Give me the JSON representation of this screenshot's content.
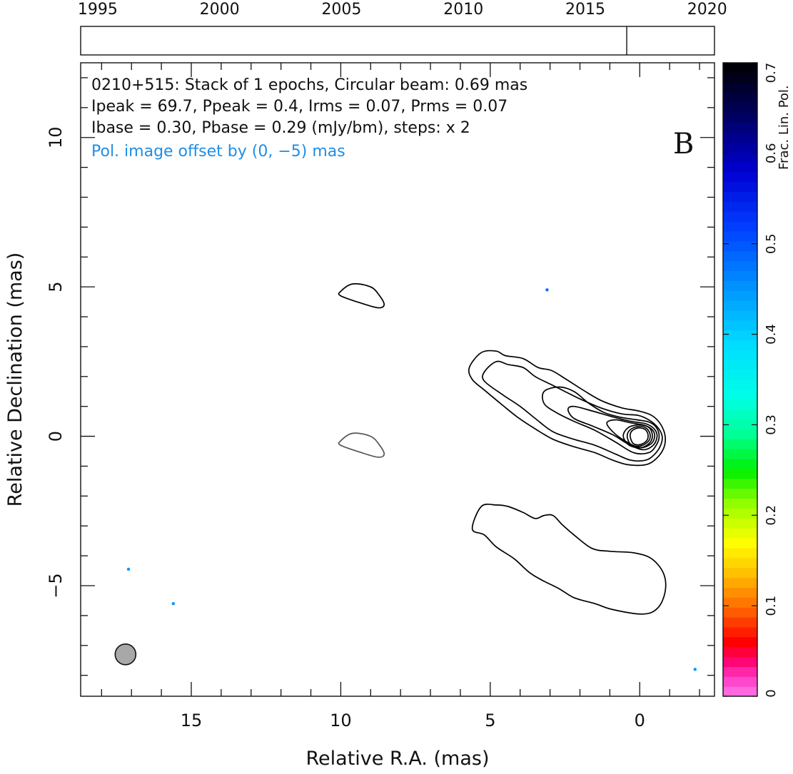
{
  "chart_data": {
    "type": "contour",
    "timeline": {
      "years": [
        "1995",
        "2000",
        "2005",
        "2010",
        "2015",
        "2020"
      ],
      "year_values": [
        1995,
        2000,
        2005,
        2010,
        2015,
        2020
      ],
      "range": [
        1994.3,
        2020.3
      ],
      "epochs": [
        2016.7
      ]
    },
    "header_lines": [
      "0210+515: Stack of 1 epochs, Circular beam: 0.69 mas",
      "Ipeak = 69.7, Ppeak = 0.4, Irms = 0.07, Prms = 0.07",
      "Ibase = 0.30, Pbase = 0.29 (mJy/bm), steps: x 2"
    ],
    "offset_note": "Pol. image offset by (0, −5) mas",
    "panel_label": "B",
    "xlabel": "Relative R.A. (mas)",
    "ylabel": "Relative Declination (mas)",
    "xlim": [
      18.7,
      -2.5
    ],
    "ylim": [
      -8.7,
      12.5
    ],
    "x_ticks": [
      15,
      10,
      5,
      0
    ],
    "x_tick_labels": [
      "15",
      "10",
      "5",
      "0"
    ],
    "y_ticks": [
      10,
      5,
      0,
      -5
    ],
    "y_tick_labels": [
      "10",
      "5",
      "0",
      "−5"
    ],
    "colorbar": {
      "label": "Frac. Lin. Pol.",
      "range": [
        0,
        0.7
      ],
      "ticks": [
        "0",
        "0.1",
        "0.2",
        "0.3",
        "0.4",
        "0.5",
        "0.6",
        "0.7"
      ],
      "tick_values": [
        0,
        0.1,
        0.2,
        0.3,
        0.4,
        0.5,
        0.6,
        0.7
      ]
    },
    "beam": {
      "ra": 17.2,
      "dec": -7.3,
      "diameter_mas": 0.69
    },
    "total_intensity_contours": [
      [
        [
          5.6,
          1.9
        ],
        [
          5.7,
          2.3
        ],
        [
          5.3,
          2.8
        ],
        [
          4.8,
          2.85
        ],
        [
          4.5,
          2.7
        ],
        [
          3.9,
          2.6
        ],
        [
          3.4,
          2.3
        ],
        [
          2.95,
          2.2
        ],
        [
          2.45,
          1.9
        ],
        [
          1.9,
          1.55
        ],
        [
          1.3,
          1.2
        ],
        [
          0.6,
          0.95
        ],
        [
          0.05,
          0.85
        ],
        [
          -0.4,
          0.7
        ],
        [
          -0.7,
          0.4
        ],
        [
          -0.85,
          0.0
        ],
        [
          -0.8,
          -0.4
        ],
        [
          -0.55,
          -0.75
        ],
        [
          -0.2,
          -0.95
        ],
        [
          0.4,
          -0.95
        ],
        [
          0.9,
          -0.8
        ],
        [
          1.5,
          -0.55
        ],
        [
          2.2,
          -0.35
        ],
        [
          2.9,
          -0.1
        ],
        [
          3.5,
          0.25
        ],
        [
          4.1,
          0.65
        ],
        [
          4.6,
          1.05
        ],
        [
          5.2,
          1.55
        ],
        [
          5.6,
          1.9
        ]
      ],
      [
        [
          5.2,
          2.15
        ],
        [
          4.8,
          2.5
        ],
        [
          4.4,
          2.4
        ],
        [
          3.9,
          2.3
        ],
        [
          3.5,
          2.0
        ],
        [
          3.0,
          1.75
        ],
        [
          2.6,
          1.55
        ],
        [
          2.0,
          1.25
        ],
        [
          1.3,
          0.95
        ],
        [
          0.6,
          0.75
        ],
        [
          0.05,
          0.7
        ],
        [
          -0.3,
          0.55
        ],
        [
          -0.6,
          0.3
        ],
        [
          -0.75,
          0.0
        ],
        [
          -0.7,
          -0.3
        ],
        [
          -0.5,
          -0.6
        ],
        [
          -0.2,
          -0.8
        ],
        [
          0.3,
          -0.8
        ],
        [
          0.8,
          -0.6
        ],
        [
          1.5,
          -0.3
        ],
        [
          2.2,
          -0.1
        ],
        [
          2.9,
          0.15
        ],
        [
          3.5,
          0.6
        ],
        [
          4.0,
          1.0
        ],
        [
          4.6,
          1.4
        ],
        [
          5.2,
          1.85
        ],
        [
          5.2,
          2.15
        ]
      ],
      [
        [
          3.2,
          1.5
        ],
        [
          3.2,
          1.1
        ],
        [
          2.8,
          0.8
        ],
        [
          2.2,
          0.5
        ],
        [
          1.5,
          0.2
        ],
        [
          0.8,
          -0.2
        ],
        [
          0.2,
          -0.55
        ],
        [
          -0.3,
          -0.55
        ],
        [
          -0.55,
          -0.3
        ],
        [
          -0.65,
          0.0
        ],
        [
          -0.55,
          0.3
        ],
        [
          -0.3,
          0.48
        ],
        [
          0.1,
          0.55
        ],
        [
          0.7,
          0.65
        ],
        [
          1.2,
          0.8
        ],
        [
          1.7,
          1.1
        ],
        [
          2.2,
          1.5
        ],
        [
          2.7,
          1.65
        ],
        [
          3.2,
          1.5
        ]
      ],
      [
        [
          2.4,
          0.9
        ],
        [
          2.2,
          0.6
        ],
        [
          1.6,
          0.35
        ],
        [
          0.9,
          0.05
        ],
        [
          0.4,
          -0.25
        ],
        [
          -0.1,
          -0.45
        ],
        [
          -0.45,
          -0.3
        ],
        [
          -0.58,
          0.0
        ],
        [
          -0.48,
          0.25
        ],
        [
          -0.2,
          0.42
        ],
        [
          0.3,
          0.5
        ],
        [
          0.9,
          0.65
        ],
        [
          1.6,
          0.85
        ],
        [
          2.2,
          1.0
        ],
        [
          2.4,
          0.9
        ]
      ],
      [
        [
          1.1,
          0.45
        ],
        [
          0.9,
          0.15
        ],
        [
          0.5,
          -0.15
        ],
        [
          0.0,
          -0.38
        ],
        [
          -0.38,
          -0.25
        ],
        [
          -0.5,
          0.0
        ],
        [
          -0.42,
          0.22
        ],
        [
          -0.15,
          0.37
        ],
        [
          0.3,
          0.45
        ],
        [
          0.8,
          0.55
        ],
        [
          1.1,
          0.45
        ]
      ],
      [
        [
          0.55,
          0.0
        ],
        [
          0.35,
          -0.3
        ],
        [
          -0.05,
          -0.38
        ],
        [
          -0.35,
          -0.2
        ],
        [
          -0.42,
          0.05
        ],
        [
          -0.3,
          0.3
        ],
        [
          0.05,
          0.38
        ],
        [
          0.4,
          0.28
        ],
        [
          0.55,
          0.0
        ]
      ],
      [
        [
          0.42,
          0.0
        ],
        [
          0.3,
          -0.27
        ],
        [
          0.0,
          -0.33
        ],
        [
          -0.28,
          -0.18
        ],
        [
          -0.35,
          0.05
        ],
        [
          -0.22,
          0.27
        ],
        [
          0.05,
          0.33
        ],
        [
          0.32,
          0.22
        ],
        [
          0.42,
          0.0
        ]
      ],
      [
        [
          0.32,
          0.0
        ],
        [
          0.22,
          -0.24
        ],
        [
          0.0,
          -0.28
        ],
        [
          -0.22,
          -0.16
        ],
        [
          -0.28,
          0.04
        ],
        [
          -0.18,
          0.23
        ],
        [
          0.05,
          0.28
        ],
        [
          0.26,
          0.18
        ],
        [
          0.32,
          0.0
        ]
      ],
      [
        [
          10.0,
          4.85
        ],
        [
          9.6,
          5.1
        ],
        [
          9.0,
          5.0
        ],
        [
          8.7,
          4.7
        ],
        [
          8.55,
          4.4
        ],
        [
          8.75,
          4.3
        ],
        [
          9.3,
          4.45
        ],
        [
          10.0,
          4.7
        ],
        [
          10.0,
          4.85
        ]
      ],
      [
        [
          5.6,
          -3.1
        ],
        [
          5.3,
          -2.35
        ],
        [
          4.8,
          -2.3
        ],
        [
          4.4,
          -2.35
        ],
        [
          3.9,
          -2.55
        ],
        [
          3.5,
          -2.75
        ],
        [
          3.2,
          -2.65
        ],
        [
          2.9,
          -2.65
        ],
        [
          2.6,
          -2.95
        ],
        [
          2.2,
          -3.3
        ],
        [
          1.6,
          -3.75
        ],
        [
          1.0,
          -3.85
        ],
        [
          0.2,
          -3.9
        ],
        [
          -0.4,
          -4.1
        ],
        [
          -0.8,
          -4.6
        ],
        [
          -0.85,
          -5.2
        ],
        [
          -0.6,
          -5.75
        ],
        [
          -0.1,
          -5.95
        ],
        [
          0.9,
          -5.8
        ],
        [
          1.5,
          -5.6
        ],
        [
          2.2,
          -5.4
        ],
        [
          2.7,
          -5.1
        ],
        [
          3.3,
          -4.8
        ],
        [
          3.7,
          -4.55
        ],
        [
          4.2,
          -4.1
        ],
        [
          4.8,
          -3.7
        ],
        [
          5.2,
          -3.3
        ],
        [
          5.6,
          -3.1
        ]
      ]
    ],
    "polarization_contours": [
      [
        [
          10.0,
          -0.15
        ],
        [
          9.6,
          0.1
        ],
        [
          9.0,
          0.0
        ],
        [
          8.7,
          -0.3
        ],
        [
          8.55,
          -0.6
        ],
        [
          8.75,
          -0.7
        ],
        [
          9.3,
          -0.55
        ],
        [
          10.0,
          -0.3
        ],
        [
          10.0,
          -0.15
        ]
      ]
    ],
    "frac_pol_spots": [
      {
        "ra": 17.1,
        "dec": -4.45,
        "value": 0.45
      },
      {
        "ra": 15.6,
        "dec": -5.6,
        "value": 0.45
      },
      {
        "ra": -1.85,
        "dec": -7.8,
        "value": 0.45
      },
      {
        "ra": 3.1,
        "dec": 4.9,
        "value": 0.48
      }
    ],
    "colors": {
      "contour": "#000000",
      "pol_contour": "#555555",
      "beam_fill": "#a8a8a8",
      "offset_note": "#1f8ee6"
    }
  }
}
